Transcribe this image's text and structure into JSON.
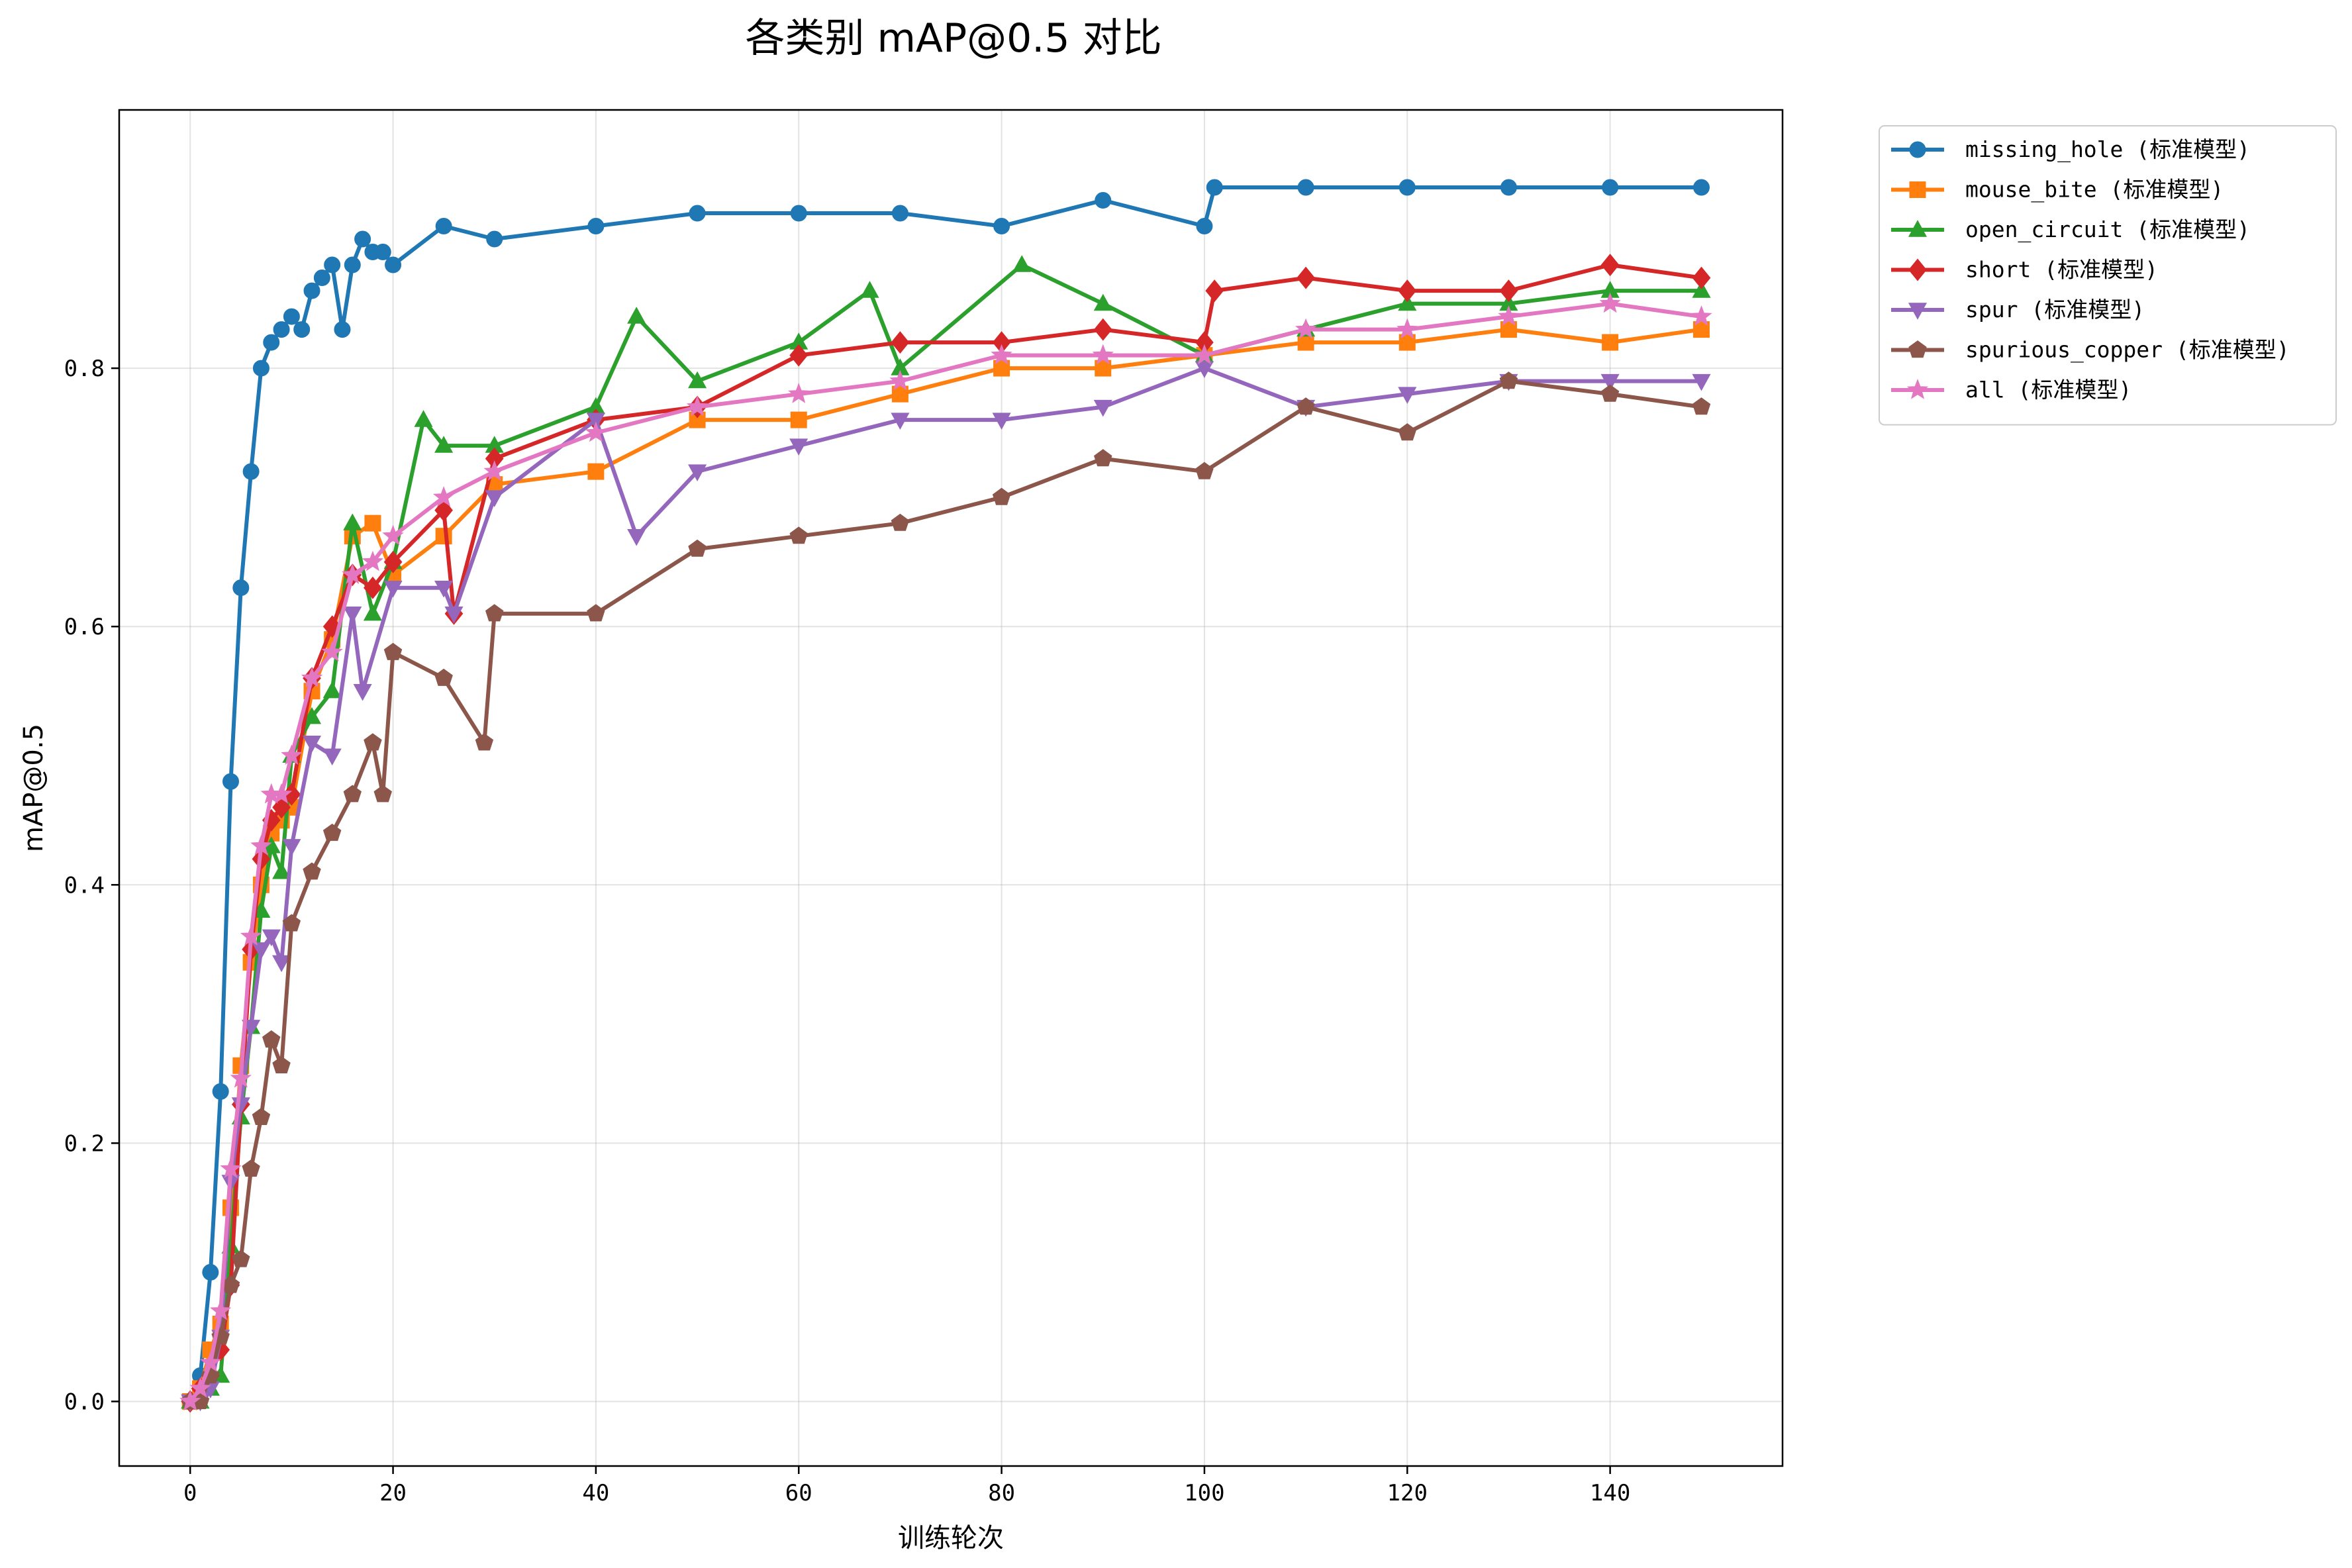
{
  "chart_data": {
    "type": "line",
    "title": "各类别 mAP@0.5 对比",
    "xlabel": "训练轮次",
    "ylabel": "mAP@0.5",
    "xlim": [
      -7,
      157
    ],
    "ylim": [
      -0.05,
      1.0
    ],
    "xticks": [
      0,
      20,
      40,
      60,
      80,
      100,
      120,
      140
    ],
    "yticks": [
      0.0,
      0.2,
      0.4,
      0.6,
      0.8
    ],
    "ytick_labels": [
      "0.0",
      "0.2",
      "0.4",
      "0.6",
      "0.8"
    ],
    "grid": true,
    "legend_position": "outside-top-right",
    "series": [
      {
        "name": "missing_hole (标准模型)",
        "color": "#1f77b4",
        "marker": "circle",
        "x": [
          0,
          1,
          2,
          3,
          4,
          5,
          6,
          7,
          8,
          9,
          10,
          11,
          12,
          13,
          14,
          15,
          16,
          17,
          18,
          19,
          20,
          25,
          30,
          40,
          50,
          60,
          70,
          80,
          90,
          100,
          101,
          110,
          120,
          130,
          140,
          149
        ],
        "values": [
          0.0,
          0.02,
          0.1,
          0.24,
          0.48,
          0.63,
          0.72,
          0.8,
          0.82,
          0.83,
          0.84,
          0.83,
          0.86,
          0.87,
          0.88,
          0.83,
          0.88,
          0.9,
          0.89,
          0.89,
          0.88,
          0.91,
          0.9,
          0.91,
          0.92,
          0.92,
          0.92,
          0.91,
          0.93,
          0.91,
          0.94,
          0.94,
          0.94,
          0.94,
          0.94,
          0.94
        ]
      },
      {
        "name": "mouse_bite (标准模型)",
        "color": "#ff7f0e",
        "marker": "square",
        "x": [
          0,
          1,
          2,
          3,
          4,
          5,
          6,
          7,
          8,
          9,
          10,
          12,
          14,
          16,
          18,
          20,
          25,
          30,
          40,
          50,
          60,
          70,
          80,
          90,
          100,
          110,
          120,
          130,
          140,
          149
        ],
        "values": [
          0.0,
          0.01,
          0.04,
          0.06,
          0.15,
          0.26,
          0.34,
          0.4,
          0.44,
          0.45,
          0.46,
          0.55,
          0.59,
          0.67,
          0.68,
          0.64,
          0.67,
          0.71,
          0.72,
          0.76,
          0.76,
          0.78,
          0.8,
          0.8,
          0.81,
          0.82,
          0.82,
          0.83,
          0.82,
          0.83
        ]
      },
      {
        "name": "open_circuit (标准模型)",
        "color": "#2ca02c",
        "marker": "triangle-up",
        "x": [
          0,
          1,
          2,
          3,
          4,
          5,
          6,
          7,
          8,
          9,
          10,
          12,
          14,
          16,
          18,
          20,
          23,
          25,
          30,
          40,
          44,
          50,
          60,
          67,
          70,
          82,
          90,
          100,
          110,
          120,
          130,
          140,
          149
        ],
        "values": [
          0.0,
          0.0,
          0.01,
          0.02,
          0.12,
          0.22,
          0.29,
          0.38,
          0.43,
          0.41,
          0.5,
          0.53,
          0.55,
          0.68,
          0.61,
          0.65,
          0.76,
          0.74,
          0.74,
          0.77,
          0.84,
          0.79,
          0.82,
          0.86,
          0.8,
          0.88,
          0.85,
          0.81,
          0.83,
          0.85,
          0.85,
          0.86,
          0.86
        ]
      },
      {
        "name": "short (标准模型)",
        "color": "#d62728",
        "marker": "diamond",
        "x": [
          0,
          1,
          2,
          3,
          4,
          5,
          6,
          7,
          8,
          9,
          10,
          12,
          14,
          16,
          18,
          20,
          25,
          26,
          30,
          40,
          50,
          60,
          70,
          80,
          90,
          100,
          101,
          110,
          120,
          130,
          140,
          149
        ],
        "values": [
          0.0,
          0.01,
          0.02,
          0.04,
          0.09,
          0.23,
          0.35,
          0.42,
          0.45,
          0.46,
          0.47,
          0.56,
          0.6,
          0.64,
          0.63,
          0.65,
          0.69,
          0.61,
          0.73,
          0.76,
          0.77,
          0.81,
          0.82,
          0.82,
          0.83,
          0.82,
          0.86,
          0.87,
          0.86,
          0.86,
          0.88,
          0.87
        ]
      },
      {
        "name": "spur (标准模型)",
        "color": "#9467bd",
        "marker": "triangle-down",
        "x": [
          0,
          1,
          2,
          3,
          4,
          5,
          6,
          7,
          8,
          9,
          10,
          12,
          14,
          16,
          17,
          20,
          25,
          26,
          30,
          40,
          44,
          50,
          60,
          70,
          80,
          90,
          100,
          110,
          120,
          130,
          140,
          149
        ],
        "values": [
          0.0,
          0.0,
          0.01,
          0.05,
          0.17,
          0.23,
          0.29,
          0.35,
          0.36,
          0.34,
          0.43,
          0.51,
          0.5,
          0.61,
          0.55,
          0.63,
          0.63,
          0.61,
          0.7,
          0.76,
          0.67,
          0.72,
          0.74,
          0.76,
          0.76,
          0.77,
          0.8,
          0.77,
          0.78,
          0.79,
          0.79,
          0.79
        ]
      },
      {
        "name": "spurious_copper (标准模型)",
        "color": "#8c564b",
        "marker": "pentagon",
        "x": [
          0,
          1,
          2,
          3,
          4,
          5,
          6,
          7,
          8,
          9,
          10,
          12,
          14,
          16,
          18,
          19,
          20,
          25,
          29,
          30,
          40,
          50,
          60,
          70,
          80,
          90,
          100,
          110,
          120,
          130,
          140,
          149
        ],
        "values": [
          0.0,
          0.0,
          0.02,
          0.05,
          0.09,
          0.11,
          0.18,
          0.22,
          0.28,
          0.26,
          0.37,
          0.41,
          0.44,
          0.47,
          0.51,
          0.47,
          0.58,
          0.56,
          0.51,
          0.61,
          0.61,
          0.66,
          0.67,
          0.68,
          0.7,
          0.73,
          0.72,
          0.77,
          0.75,
          0.79,
          0.78,
          0.77
        ]
      },
      {
        "name": "all (标准模型)",
        "color": "#e377c2",
        "marker": "star",
        "x": [
          0,
          1,
          2,
          3,
          4,
          5,
          6,
          7,
          8,
          9,
          10,
          12,
          14,
          16,
          18,
          20,
          25,
          30,
          40,
          50,
          60,
          70,
          80,
          90,
          100,
          110,
          120,
          130,
          140,
          149
        ],
        "values": [
          0.0,
          0.01,
          0.03,
          0.07,
          0.18,
          0.25,
          0.36,
          0.43,
          0.47,
          0.47,
          0.5,
          0.56,
          0.58,
          0.64,
          0.65,
          0.67,
          0.7,
          0.72,
          0.75,
          0.77,
          0.78,
          0.79,
          0.81,
          0.81,
          0.81,
          0.83,
          0.83,
          0.84,
          0.85,
          0.84
        ]
      }
    ]
  }
}
